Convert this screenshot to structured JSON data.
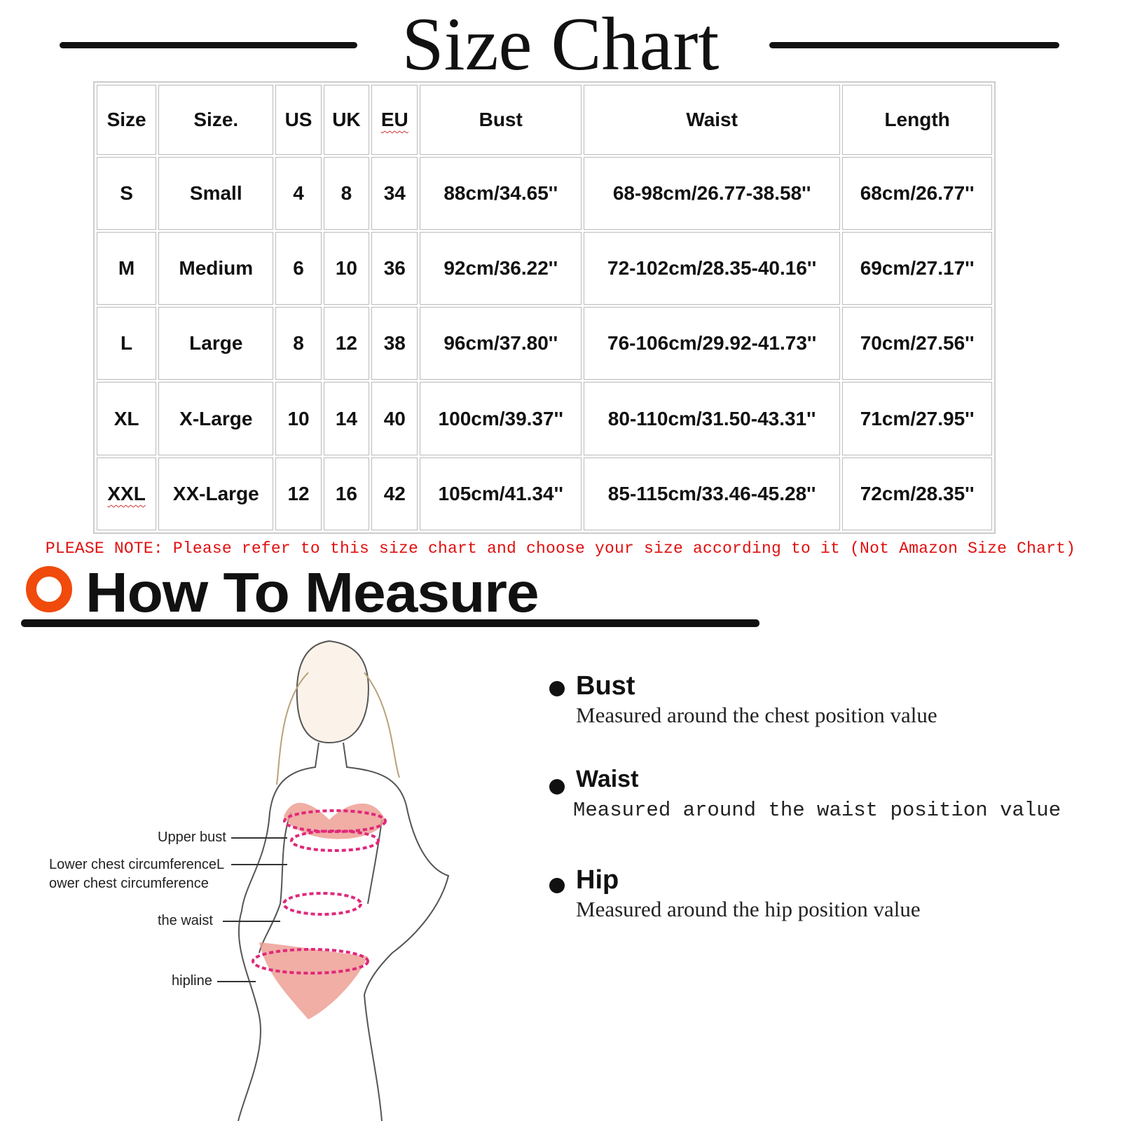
{
  "title": "Size Chart",
  "table": {
    "headers": [
      "Size",
      "Size.",
      "US",
      "UK",
      "EU",
      "Bust",
      "Waist",
      "Length"
    ],
    "rows": [
      [
        "S",
        "Small",
        "4",
        "8",
        "34",
        "88cm/34.65''",
        "68-98cm/26.77-38.58''",
        "68cm/26.77''"
      ],
      [
        "M",
        "Medium",
        "6",
        "10",
        "36",
        "92cm/36.22''",
        "72-102cm/28.35-40.16''",
        "69cm/27.17''"
      ],
      [
        "L",
        "Large",
        "8",
        "12",
        "38",
        "96cm/37.80''",
        "76-106cm/29.92-41.73''",
        "70cm/27.56''"
      ],
      [
        "XL",
        "X-Large",
        "10",
        "14",
        "40",
        "100cm/39.37''",
        "80-110cm/31.50-43.31''",
        "71cm/27.95''"
      ],
      [
        "XXL",
        "XX-Large",
        "12",
        "16",
        "42",
        "105cm/41.34''",
        "85-115cm/33.46-45.28''",
        "72cm/28.35''"
      ]
    ]
  },
  "note": "PLEASE NOTE: Please refer to this size chart and choose your size according to it (Not Amazon Size Chart)",
  "note_color": "#e01010",
  "accent_color": "#f04a0c",
  "how_to": {
    "heading": "How To Measure",
    "figure_labels": {
      "upper_bust": "Upper bust",
      "lower_chest_1": "Lower chest circumferenceL",
      "lower_chest_2": "ower chest circumference",
      "waist": "the waist",
      "hipline": "hipline"
    },
    "items": [
      {
        "title": "Bust",
        "desc": "Measured around the chest position value"
      },
      {
        "title": "Waist",
        "desc": "Measured around the waist position value"
      },
      {
        "title": "Hip",
        "desc": "Measured around the  hip position value"
      }
    ]
  }
}
